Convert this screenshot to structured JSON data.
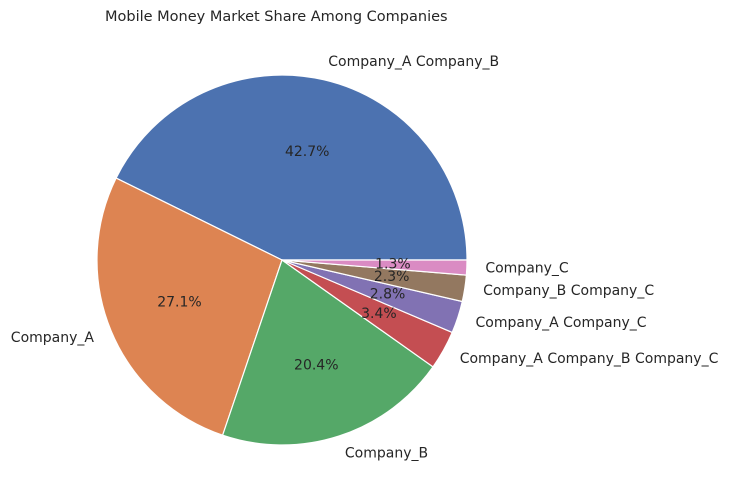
{
  "chart_data": {
    "type": "pie",
    "title": "Mobile Money Market Share Among Companies",
    "categories": [
      "Company_A Company_B",
      "Company_A",
      "Company_B",
      "Company_A Company_B Company_C",
      "Company_A Company_C",
      "Company_B Company_C",
      "Company_C"
    ],
    "values": [
      42.7,
      27.1,
      20.4,
      3.4,
      2.8,
      2.3,
      1.3
    ],
    "value_labels": [
      "42.7%",
      "27.1%",
      "20.4%",
      "3.4%",
      "2.8%",
      "2.3%",
      "1.3%"
    ],
    "colors": [
      "#4c72b0",
      "#dd8452",
      "#55a868",
      "#c44e52",
      "#8172b3",
      "#937860",
      "#da8bc3"
    ]
  }
}
